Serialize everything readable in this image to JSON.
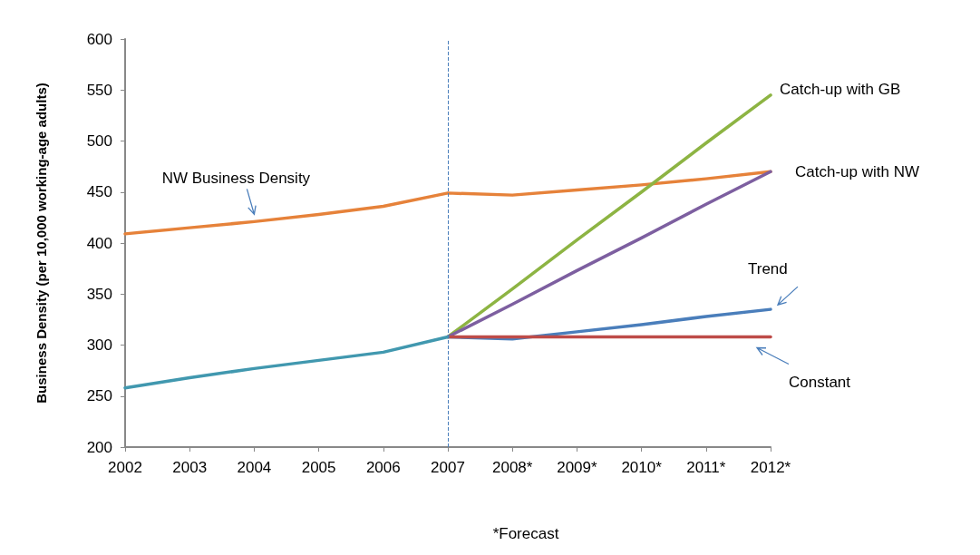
{
  "chart_data": {
    "type": "line",
    "ylabel": "Business Density (per 10,000 working-age adults)",
    "categories": [
      "2002",
      "2003",
      "2004",
      "2005",
      "2006",
      "2007",
      "2008*",
      "2009*",
      "2010*",
      "2011*",
      "2012*"
    ],
    "series": [
      {
        "name": "NW Business Density",
        "color": "#e6823a",
        "values": [
          409,
          415,
          421,
          428,
          436,
          449,
          447,
          452,
          457,
          463,
          470
        ]
      },
      {
        "name": "Catch-up with GB",
        "color": "#8db443",
        "values": [
          null,
          null,
          null,
          null,
          null,
          308,
          355,
          403,
          450,
          498,
          545
        ]
      },
      {
        "name": "Catch-up with NW",
        "color": "#7d5fa0",
        "values": [
          null,
          null,
          null,
          null,
          null,
          308,
          340,
          373,
          405,
          438,
          470
        ]
      },
      {
        "name": "Trend",
        "color": "#4a7ebb",
        "values": [
          null,
          null,
          null,
          null,
          null,
          308,
          306,
          313,
          320,
          328,
          335
        ]
      },
      {
        "name": "Constant",
        "color": "#be4b48",
        "values": [
          null,
          null,
          null,
          null,
          null,
          308,
          308,
          308,
          308,
          308,
          308
        ]
      },
      {
        "color": "#4198af",
        "values": [
          258,
          268,
          277,
          285,
          293,
          308,
          null,
          null,
          null,
          null,
          null
        ]
      }
    ],
    "ylim": [
      200,
      600
    ],
    "yticks": [
      200,
      250,
      300,
      350,
      400,
      450,
      500,
      550,
      600
    ],
    "grid": false,
    "legend": false,
    "marker": "none",
    "line_style": "solid",
    "ref_lines": [
      {
        "axis": "x",
        "value": "2007",
        "color": "#4a7ebb",
        "line_style": "dashed"
      }
    ],
    "annotations": [
      "*Forecast"
    ]
  }
}
